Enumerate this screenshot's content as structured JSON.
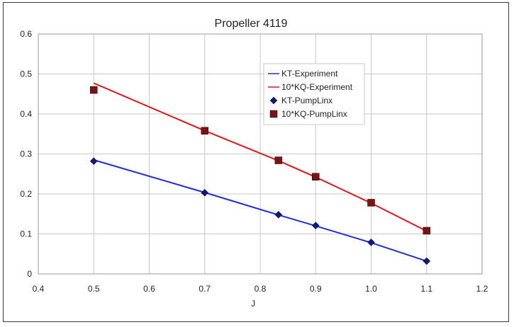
{
  "chart_data": {
    "type": "scatter",
    "title": "Propeller 4119",
    "xlabel": "J",
    "ylabel": "",
    "xlim": [
      0.4,
      1.2
    ],
    "ylim": [
      0,
      0.6
    ],
    "x_ticks": [
      0.4,
      0.5,
      0.6,
      0.7,
      0.8,
      0.9,
      1.0,
      1.1,
      1.2
    ],
    "x_tick_labels": [
      "0.4",
      "0.5",
      "0.6",
      "0.7",
      "0.8",
      "0.9",
      "1.0",
      "1.1",
      "1.2"
    ],
    "y_ticks": [
      0,
      0.1,
      0.2,
      0.3,
      0.4,
      0.5,
      0.6
    ],
    "y_tick_labels": [
      "0",
      "0.1",
      "0.2",
      "0.3",
      "0.4",
      "0.5",
      "0.6"
    ],
    "grid": true,
    "legend_position": "top-center",
    "series": [
      {
        "name": "KT-Experiment",
        "kind": "line",
        "color": "#1f2dde",
        "x": [
          0.5,
          0.7,
          0.833,
          0.9,
          1.0,
          1.1
        ],
        "y": [
          0.285,
          0.2035,
          0.1475,
          0.12,
          0.078,
          0.032
        ]
      },
      {
        "name": "10*KQ-Experiment",
        "kind": "line",
        "color": "#e8141a",
        "x": [
          0.5,
          0.7,
          0.833,
          0.9,
          1.0,
          1.1
        ],
        "y": [
          0.477,
          0.358,
          0.283,
          0.242,
          0.177,
          0.107
        ]
      },
      {
        "name": "KT-PumpLinx",
        "kind": "marker",
        "marker": "diamond",
        "color": "#0d1a7a",
        "x": [
          0.5,
          0.7,
          0.833,
          0.9,
          1.0,
          1.1
        ],
        "y": [
          0.282,
          0.203,
          0.148,
          0.121,
          0.079,
          0.032
        ]
      },
      {
        "name": "10*KQ-PumpLinx",
        "kind": "marker",
        "marker": "square",
        "color": "#7a1414",
        "x": [
          0.5,
          0.7,
          0.833,
          0.9,
          1.0,
          1.1
        ],
        "y": [
          0.46,
          0.358,
          0.284,
          0.243,
          0.178,
          0.108
        ]
      }
    ]
  }
}
